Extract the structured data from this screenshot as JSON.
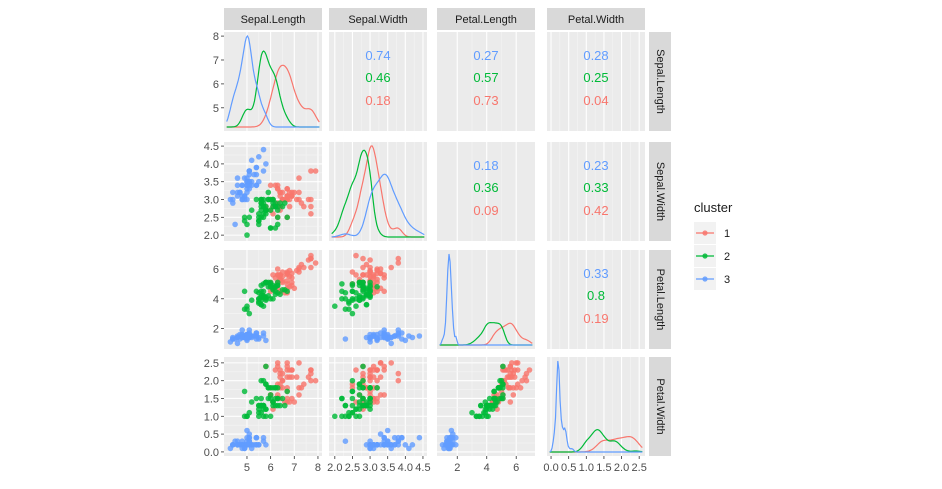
{
  "chart_data": {
    "type": "scatter",
    "subtype": "pairs-matrix",
    "variables": [
      "Sepal.Length",
      "Sepal.Width",
      "Petal.Length",
      "Petal.Width"
    ],
    "axes": {
      "Sepal.Length": {
        "range": [
          4.2,
          8.0
        ],
        "ticks": [
          5,
          6,
          7,
          8
        ],
        "tick_labels": [
          "5",
          "6",
          "7",
          "8"
        ]
      },
      "Sepal.Width": {
        "range": [
          1.95,
          4.5
        ],
        "ticks": [
          2.0,
          2.5,
          3.0,
          3.5,
          4.0,
          4.5
        ],
        "tick_labels": [
          "2.0",
          "2.5",
          "3.0",
          "3.5",
          "4.0",
          "4.5"
        ]
      },
      "Petal.Length": {
        "range": [
          0.9,
          7.0
        ],
        "ticks": [
          2,
          4,
          6
        ],
        "tick_labels": [
          "2",
          "4",
          "6"
        ]
      },
      "Petal.Width": {
        "range": [
          0.0,
          2.55
        ],
        "ticks": [
          0.0,
          0.5,
          1.0,
          1.5,
          2.0,
          2.5
        ],
        "tick_labels": [
          "0.0",
          "0.5",
          "1.0",
          "1.5",
          "2.0",
          "2.5"
        ]
      }
    },
    "grid": true,
    "legend": {
      "title": "cluster",
      "position": "right",
      "entries": [
        "1",
        "2",
        "3"
      ]
    },
    "clusters": [
      {
        "name": "1",
        "color": "#F8766D",
        "points": [
          [
            6.3,
            3.3,
            6.0,
            2.5
          ],
          [
            7.1,
            3.0,
            5.9,
            2.1
          ],
          [
            6.3,
            2.9,
            5.6,
            1.8
          ],
          [
            6.5,
            3.0,
            5.8,
            2.2
          ],
          [
            7.6,
            3.0,
            6.6,
            2.1
          ],
          [
            7.3,
            2.9,
            6.3,
            1.8
          ],
          [
            6.7,
            2.5,
            5.8,
            1.8
          ],
          [
            7.2,
            3.6,
            6.1,
            2.5
          ],
          [
            6.5,
            3.2,
            5.1,
            2.0
          ],
          [
            6.4,
            2.7,
            5.3,
            1.9
          ],
          [
            6.8,
            3.0,
            5.5,
            2.1
          ],
          [
            5.8,
            2.8,
            5.1,
            2.4
          ],
          [
            6.4,
            3.2,
            5.3,
            2.3
          ],
          [
            6.5,
            3.0,
            5.5,
            1.8
          ],
          [
            7.7,
            3.8,
            6.7,
            2.2
          ],
          [
            7.7,
            2.6,
            6.9,
            2.3
          ],
          [
            6.9,
            3.2,
            5.7,
            2.3
          ],
          [
            7.7,
            2.8,
            6.7,
            2.0
          ],
          [
            6.7,
            3.3,
            5.7,
            2.1
          ],
          [
            7.2,
            3.2,
            6.0,
            1.8
          ],
          [
            6.4,
            2.8,
            5.6,
            2.1
          ],
          [
            7.2,
            3.0,
            5.8,
            1.6
          ],
          [
            7.4,
            2.8,
            6.1,
            1.9
          ],
          [
            7.9,
            3.8,
            6.4,
            2.0
          ],
          [
            6.4,
            2.8,
            5.6,
            2.2
          ],
          [
            6.1,
            2.6,
            5.6,
            1.4
          ],
          [
            7.7,
            3.0,
            6.1,
            2.3
          ],
          [
            6.3,
            3.4,
            5.6,
            2.4
          ],
          [
            6.4,
            3.1,
            5.5,
            1.8
          ],
          [
            6.9,
            3.1,
            5.4,
            2.1
          ],
          [
            6.7,
            3.1,
            5.6,
            2.4
          ],
          [
            6.9,
            3.1,
            5.1,
            2.3
          ],
          [
            6.8,
            3.2,
            5.9,
            2.3
          ],
          [
            6.7,
            3.3,
            5.7,
            2.5
          ],
          [
            6.7,
            3.0,
            5.2,
            2.3
          ],
          [
            6.5,
            3.0,
            5.2,
            2.0
          ],
          [
            6.2,
            3.4,
            5.4,
            2.3
          ],
          [
            6.3,
            2.5,
            5.0,
            1.9
          ],
          [
            7.0,
            3.2,
            4.7,
            1.4
          ],
          [
            6.9,
            3.1,
            4.9,
            1.5
          ],
          [
            6.7,
            3.0,
            5.0,
            1.7
          ],
          [
            6.0,
            2.7,
            5.1,
            1.6
          ],
          [
            6.0,
            3.4,
            4.5,
            1.6
          ],
          [
            6.7,
            3.1,
            4.7,
            1.5
          ],
          [
            6.3,
            3.3,
            4.7,
            1.6
          ],
          [
            6.6,
            3.0,
            4.4,
            1.4
          ],
          [
            6.8,
            2.8,
            4.8,
            1.4
          ],
          [
            6.7,
            3.1,
            4.4,
            1.4
          ],
          [
            6.1,
            3.0,
            4.6,
            1.4
          ],
          [
            6.4,
            3.2,
            4.5,
            1.5
          ],
          [
            6.3,
            2.8,
            5.1,
            1.5
          ],
          [
            6.0,
            3.0,
            4.8,
            1.8
          ],
          [
            6.1,
            2.8,
            4.7,
            1.2
          ]
        ]
      },
      {
        "name": "2",
        "color": "#00BA38",
        "points": [
          [
            6.5,
            2.8,
            4.6,
            1.5
          ],
          [
            5.7,
            2.8,
            4.5,
            1.3
          ],
          [
            4.9,
            2.4,
            3.3,
            1.0
          ],
          [
            6.6,
            2.9,
            4.6,
            1.3
          ],
          [
            5.2,
            2.7,
            3.9,
            1.4
          ],
          [
            5.0,
            2.0,
            3.5,
            1.0
          ],
          [
            5.9,
            3.0,
            4.2,
            1.5
          ],
          [
            6.0,
            2.2,
            4.0,
            1.0
          ],
          [
            6.1,
            2.9,
            4.7,
            1.4
          ],
          [
            5.6,
            2.9,
            3.6,
            1.3
          ],
          [
            5.6,
            3.0,
            4.5,
            1.5
          ],
          [
            5.8,
            2.7,
            4.1,
            1.0
          ],
          [
            6.2,
            2.2,
            4.5,
            1.5
          ],
          [
            5.6,
            2.5,
            3.9,
            1.1
          ],
          [
            5.9,
            3.2,
            4.8,
            1.8
          ],
          [
            6.3,
            2.5,
            4.9,
            1.5
          ],
          [
            6.2,
            2.8,
            4.8,
            1.8
          ],
          [
            5.7,
            2.6,
            3.5,
            1.0
          ],
          [
            5.5,
            2.4,
            3.8,
            1.1
          ],
          [
            5.5,
            2.4,
            3.7,
            1.0
          ],
          [
            5.8,
            2.7,
            3.9,
            1.2
          ],
          [
            6.0,
            2.7,
            5.1,
            1.6
          ],
          [
            5.4,
            3.0,
            4.5,
            1.5
          ],
          [
            6.3,
            2.3,
            4.4,
            1.3
          ],
          [
            5.6,
            3.0,
            4.1,
            1.3
          ],
          [
            5.5,
            2.5,
            4.0,
            1.3
          ],
          [
            5.5,
            2.6,
            4.4,
            1.2
          ],
          [
            6.1,
            3.0,
            4.6,
            1.4
          ],
          [
            5.8,
            2.6,
            4.0,
            1.2
          ],
          [
            5.0,
            2.3,
            3.3,
            1.0
          ],
          [
            5.6,
            2.7,
            4.2,
            1.3
          ],
          [
            5.7,
            3.0,
            4.2,
            1.2
          ],
          [
            5.7,
            2.9,
            4.2,
            1.3
          ],
          [
            6.2,
            2.9,
            4.3,
            1.3
          ],
          [
            5.1,
            2.5,
            3.0,
            1.1
          ],
          [
            5.7,
            2.8,
            4.1,
            1.3
          ],
          [
            5.8,
            2.7,
            5.1,
            1.9
          ],
          [
            4.9,
            2.5,
            4.5,
            1.7
          ],
          [
            5.7,
            2.5,
            5.0,
            2.0
          ],
          [
            5.8,
            2.8,
            5.1,
            2.4
          ],
          [
            6.0,
            2.2,
            5.0,
            1.5
          ],
          [
            5.6,
            2.8,
            4.9,
            2.0
          ],
          [
            6.3,
            2.7,
            4.9,
            1.8
          ],
          [
            6.2,
            2.8,
            4.8,
            1.8
          ],
          [
            6.1,
            3.0,
            4.9,
            1.8
          ],
          [
            6.3,
            2.8,
            5.1,
            1.5
          ],
          [
            6.0,
            3.0,
            4.8,
            1.8
          ],
          [
            5.8,
            2.7,
            5.1,
            1.9
          ],
          [
            5.9,
            3.0,
            5.1,
            1.8
          ],
          [
            5.5,
            2.3,
            4.0,
            1.3
          ],
          [
            6.4,
            2.9,
            4.3,
            1.3
          ],
          [
            5.6,
            2.9,
            3.6,
            1.3
          ],
          [
            6.1,
            2.8,
            4.0,
            1.3
          ],
          [
            6.7,
            2.5,
            4.5,
            1.7
          ]
        ]
      },
      {
        "name": "3",
        "color": "#619CFF",
        "points": [
          [
            5.1,
            3.5,
            1.4,
            0.2
          ],
          [
            4.9,
            3.0,
            1.4,
            0.2
          ],
          [
            4.7,
            3.2,
            1.3,
            0.2
          ],
          [
            4.6,
            3.1,
            1.5,
            0.2
          ],
          [
            5.0,
            3.6,
            1.4,
            0.2
          ],
          [
            5.4,
            3.9,
            1.7,
            0.4
          ],
          [
            4.6,
            3.4,
            1.4,
            0.3
          ],
          [
            5.0,
            3.4,
            1.5,
            0.2
          ],
          [
            4.4,
            2.9,
            1.4,
            0.2
          ],
          [
            4.9,
            3.1,
            1.5,
            0.1
          ],
          [
            5.4,
            3.7,
            1.5,
            0.2
          ],
          [
            4.8,
            3.4,
            1.6,
            0.2
          ],
          [
            4.8,
            3.0,
            1.4,
            0.1
          ],
          [
            4.3,
            3.0,
            1.1,
            0.1
          ],
          [
            5.8,
            4.0,
            1.2,
            0.2
          ],
          [
            5.7,
            4.4,
            1.5,
            0.4
          ],
          [
            5.4,
            3.9,
            1.3,
            0.4
          ],
          [
            5.1,
            3.5,
            1.4,
            0.3
          ],
          [
            5.7,
            3.8,
            1.7,
            0.3
          ],
          [
            5.1,
            3.8,
            1.5,
            0.3
          ],
          [
            5.4,
            3.4,
            1.7,
            0.2
          ],
          [
            5.1,
            3.7,
            1.5,
            0.4
          ],
          [
            4.6,
            3.6,
            1.0,
            0.2
          ],
          [
            5.1,
            3.3,
            1.7,
            0.5
          ],
          [
            4.8,
            3.4,
            1.9,
            0.2
          ],
          [
            5.0,
            3.0,
            1.6,
            0.2
          ],
          [
            5.0,
            3.4,
            1.6,
            0.4
          ],
          [
            5.2,
            3.5,
            1.5,
            0.2
          ],
          [
            5.2,
            3.4,
            1.4,
            0.2
          ],
          [
            4.7,
            3.2,
            1.6,
            0.2
          ],
          [
            4.8,
            3.1,
            1.6,
            0.2
          ],
          [
            5.4,
            3.4,
            1.5,
            0.4
          ],
          [
            5.2,
            4.1,
            1.5,
            0.1
          ],
          [
            5.5,
            4.2,
            1.4,
            0.2
          ],
          [
            4.9,
            3.1,
            1.5,
            0.2
          ],
          [
            5.0,
            3.2,
            1.2,
            0.2
          ],
          [
            5.5,
            3.5,
            1.3,
            0.2
          ],
          [
            4.9,
            3.6,
            1.4,
            0.1
          ],
          [
            4.4,
            3.0,
            1.3,
            0.2
          ],
          [
            5.1,
            3.4,
            1.5,
            0.2
          ],
          [
            5.0,
            3.5,
            1.3,
            0.3
          ],
          [
            4.5,
            2.3,
            1.3,
            0.3
          ],
          [
            4.4,
            3.2,
            1.3,
            0.2
          ],
          [
            5.0,
            3.5,
            1.6,
            0.6
          ],
          [
            5.1,
            3.8,
            1.9,
            0.4
          ],
          [
            4.8,
            3.0,
            1.4,
            0.3
          ],
          [
            5.1,
            3.8,
            1.6,
            0.2
          ],
          [
            4.6,
            3.2,
            1.4,
            0.2
          ],
          [
            5.3,
            3.7,
            1.5,
            0.2
          ],
          [
            5.0,
            3.3,
            1.4,
            0.2
          ]
        ]
      }
    ],
    "correlations": [
      {
        "row": "Sepal.Length",
        "col": "Sepal.Width",
        "values": [
          "0.74",
          "0.46",
          "0.18"
        ]
      },
      {
        "row": "Sepal.Length",
        "col": "Petal.Length",
        "values": [
          "0.27",
          "0.57",
          "0.73"
        ]
      },
      {
        "row": "Sepal.Length",
        "col": "Petal.Width",
        "values": [
          "0.28",
          "0.25",
          "0.04"
        ]
      },
      {
        "row": "Sepal.Width",
        "col": "Petal.Length",
        "values": [
          "0.18",
          "0.36",
          "0.09"
        ]
      },
      {
        "row": "Sepal.Width",
        "col": "Petal.Width",
        "values": [
          "0.23",
          "0.33",
          "0.42"
        ]
      },
      {
        "row": "Petal.Length",
        "col": "Petal.Width",
        "values": [
          "0.33",
          "0.8",
          "0.19"
        ]
      }
    ],
    "correlation_order": [
      "3",
      "2",
      "1"
    ]
  }
}
